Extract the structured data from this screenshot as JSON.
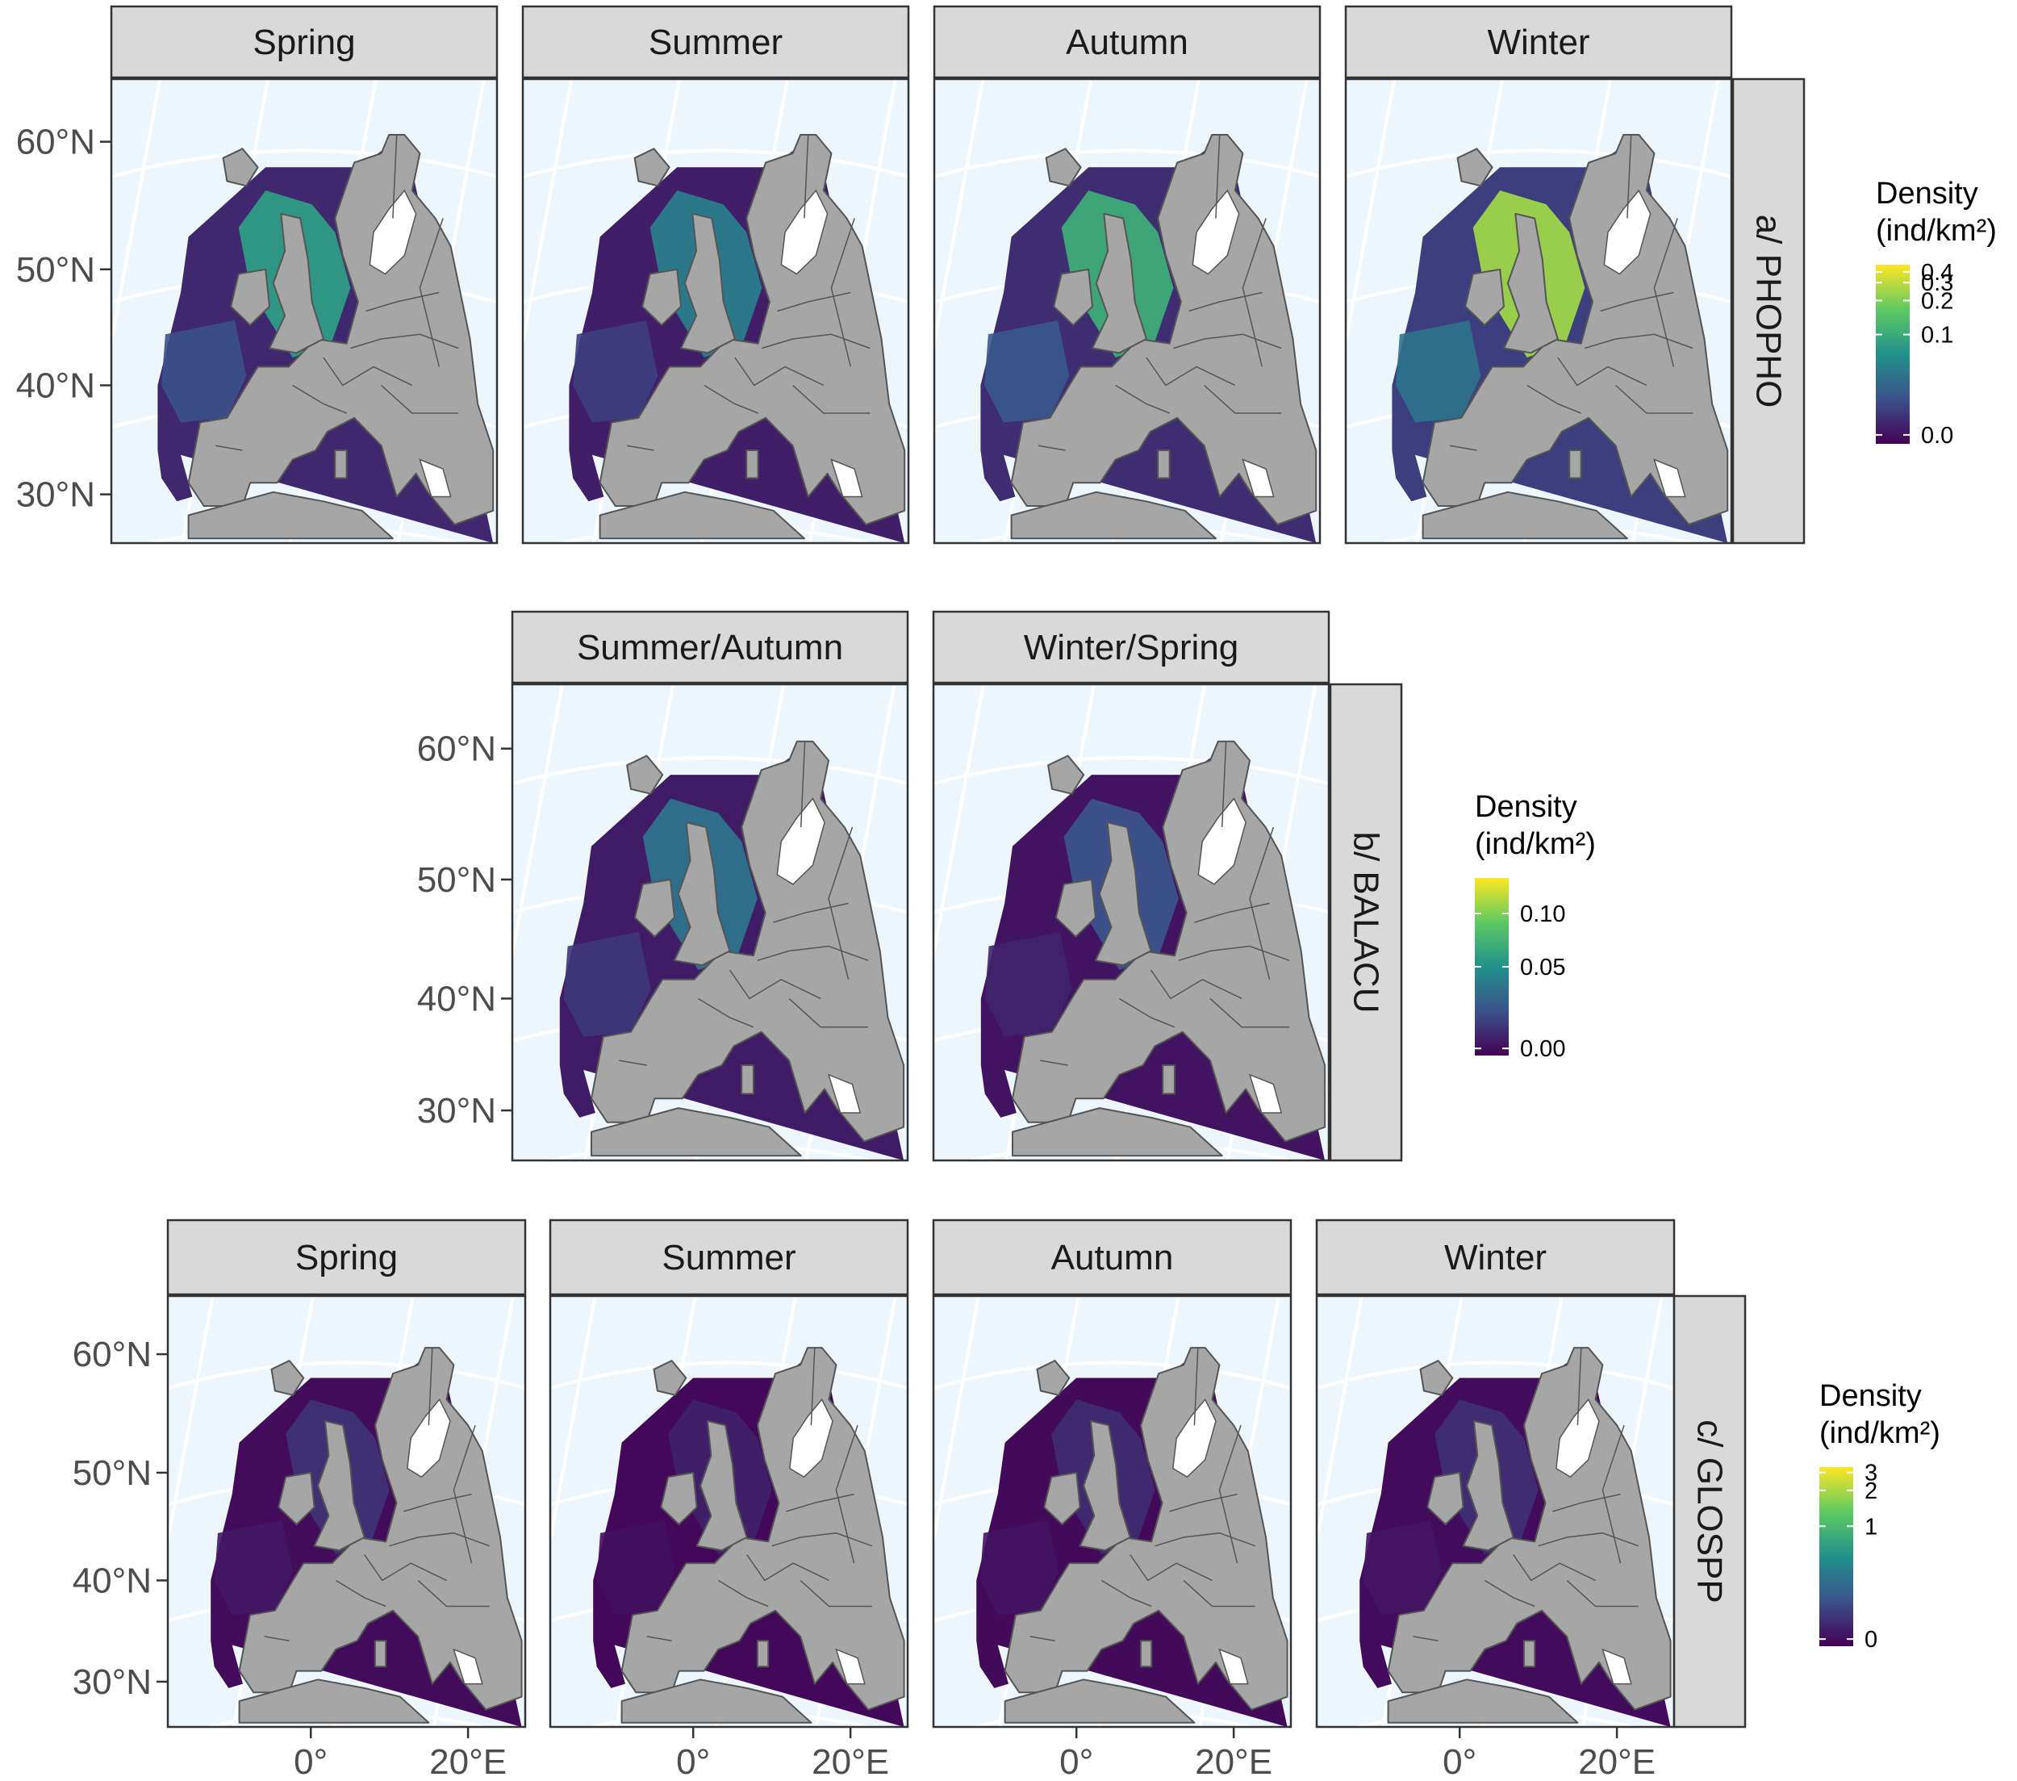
{
  "colors": {
    "ocean": "#eef6fd",
    "land": "#a6a6a6",
    "land_border": "#555555",
    "graticule": "#ffffff",
    "strip_bg": "#d9d9d9",
    "strip_border": "#333333",
    "panel_border": "#333333",
    "viridis": [
      "#440154",
      "#3b528b",
      "#21918c",
      "#5ec962",
      "#fde725"
    ]
  },
  "axes": {
    "y_ticks": [
      "60°N",
      "50°N",
      "40°N",
      "30°N"
    ],
    "x_ticks": [
      "0°",
      "20°E"
    ]
  },
  "rows": [
    {
      "id": "phopho",
      "label": "a/ PHOPHO",
      "panels": [
        {
          "title": "Spring",
          "intensity": 0.55
        },
        {
          "title": "Summer",
          "intensity": 0.42
        },
        {
          "title": "Autumn",
          "intensity": 0.62
        },
        {
          "title": "Winter",
          "intensity": 0.85
        }
      ],
      "legend": {
        "title_line1": "Density",
        "title_line2": "(ind/km²)",
        "ticks": [
          "0.4",
          "0.3",
          "0.2",
          "0.1",
          "0.0"
        ]
      }
    },
    {
      "id": "balacu",
      "label": "b/ BALACU",
      "panels": [
        {
          "title": "Summer/Autumn",
          "intensity": 0.38
        },
        {
          "title": "Winter/Spring",
          "intensity": 0.25
        }
      ],
      "legend": {
        "title_line1": "Density",
        "title_line2": "(ind/km²)",
        "ticks": [
          "0.10",
          "0.05",
          "0.00"
        ]
      }
    },
    {
      "id": "glospp",
      "label": "c/ GLOSPP",
      "panels": [
        {
          "title": "Spring",
          "intensity": 0.15
        },
        {
          "title": "Summer",
          "intensity": 0.1
        },
        {
          "title": "Autumn",
          "intensity": 0.13
        },
        {
          "title": "Winter",
          "intensity": 0.14
        }
      ],
      "legend": {
        "title_line1": "Density",
        "title_line2": "(ind/km²)",
        "ticks": [
          "3",
          "2",
          "1",
          "0"
        ]
      }
    }
  ]
}
